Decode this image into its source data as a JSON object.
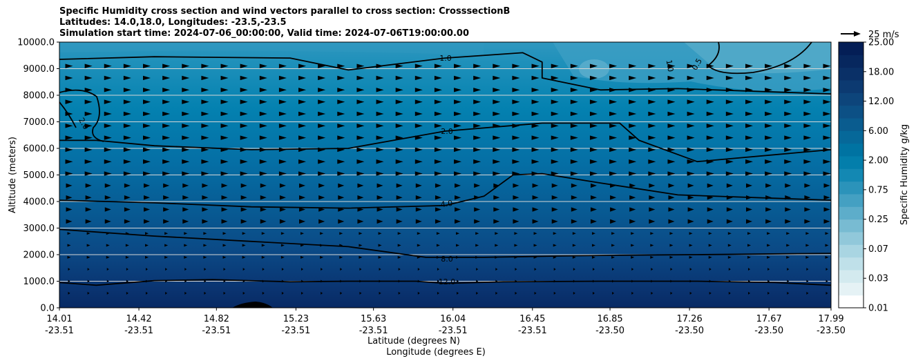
{
  "chart_data": {
    "type": "contour",
    "title_lines": [
      "Specific Humidity cross section and wind vectors parallel to cross section: CrosssectionB",
      "Latitudes: 14.0,18.0, Longitudes: -23.5,-23.5",
      "Simulation start time: 2024-07-06_00:00:00, Valid time: 2024-07-06T19:00:00.00"
    ],
    "xlabel_lat": "Latitude (degrees N)",
    "xlabel_lon": "Longitude (degrees E)",
    "ylabel": "Altitude (meters)",
    "ylim": [
      0,
      10000
    ],
    "yticks": [
      "0.0",
      "1000.0",
      "2000.0",
      "3000.0",
      "4000.0",
      "5000.0",
      "6000.0",
      "7000.0",
      "8000.0",
      "9000.0",
      "10000.0"
    ],
    "xlim": [
      14.01,
      17.99
    ],
    "xticks": [
      {
        "lat": "14.01",
        "lon": "-23.51"
      },
      {
        "lat": "14.42",
        "lon": "-23.51"
      },
      {
        "lat": "14.82",
        "lon": "-23.51"
      },
      {
        "lat": "15.23",
        "lon": "-23.51"
      },
      {
        "lat": "15.63",
        "lon": "-23.51"
      },
      {
        "lat": "16.04",
        "lon": "-23.51"
      },
      {
        "lat": "16.45",
        "lon": "-23.51"
      },
      {
        "lat": "16.85",
        "lon": "-23.50"
      },
      {
        "lat": "17.26",
        "lon": "-23.50"
      },
      {
        "lat": "17.67",
        "lon": "-23.50"
      },
      {
        "lat": "17.99",
        "lon": "-23.50"
      }
    ],
    "colorbar": {
      "label": "Specific Humidity g/kg",
      "levels": [
        0.01,
        0.02,
        0.03,
        0.05,
        0.07,
        0.1,
        0.25,
        0.4,
        0.5,
        0.75,
        1.0,
        1.5,
        2.0,
        3.0,
        4.0,
        6.0,
        8.0,
        12.0,
        16.0,
        18.0,
        20.0,
        25.0
      ],
      "tick_labels": [
        "0.01",
        "0.03",
        "0.07",
        "0.25",
        "0.75",
        "2.00",
        "6.00",
        "12.00",
        "18.00",
        "25.00"
      ]
    },
    "quiver_key": "25 m/s",
    "contour_labels": [
      "1.0",
      "2.0",
      "4.0",
      "8.0",
      "12.0",
      "2.0",
      "1.0",
      "0.5"
    ],
    "contours": [
      {
        "level": 12.0,
        "label": "12.0",
        "points": [
          [
            14.01,
            950
          ],
          [
            14.2,
            850
          ],
          [
            14.5,
            1020
          ],
          [
            14.8,
            1060
          ],
          [
            15.2,
            980
          ],
          [
            15.5,
            1000
          ],
          [
            15.85,
            1000
          ],
          [
            16.0,
            920
          ],
          [
            16.3,
            980
          ],
          [
            16.8,
            1000
          ],
          [
            17.3,
            1000
          ],
          [
            17.7,
            950
          ],
          [
            17.99,
            850
          ]
        ]
      },
      {
        "level": 8.0,
        "label": "8.0",
        "points": [
          [
            14.01,
            2950
          ],
          [
            14.5,
            2700
          ],
          [
            15.0,
            2500
          ],
          [
            15.5,
            2300
          ],
          [
            15.9,
            1900
          ],
          [
            16.2,
            1900
          ],
          [
            16.6,
            1950
          ],
          [
            16.9,
            1980
          ],
          [
            17.3,
            2000
          ],
          [
            17.99,
            2050
          ]
        ]
      },
      {
        "level": 4.0,
        "label": "4.0",
        "points": [
          [
            14.01,
            4050
          ],
          [
            14.5,
            3950
          ],
          [
            15.0,
            3800
          ],
          [
            15.5,
            3750
          ],
          [
            16.0,
            3850
          ],
          [
            16.2,
            4200
          ],
          [
            16.35,
            5000
          ],
          [
            16.5,
            5050
          ],
          [
            16.8,
            4700
          ],
          [
            17.2,
            4250
          ],
          [
            17.99,
            4050
          ]
        ]
      },
      {
        "level": 2.0,
        "label": "2.0",
        "points": [
          [
            14.01,
            6300
          ],
          [
            14.2,
            6300
          ],
          [
            14.5,
            6100
          ],
          [
            15.0,
            5950
          ],
          [
            15.5,
            6000
          ],
          [
            16.0,
            6650
          ],
          [
            16.5,
            6950
          ],
          [
            16.9,
            6950
          ],
          [
            17.0,
            6300
          ],
          [
            17.3,
            5500
          ],
          [
            17.99,
            5950
          ]
        ]
      },
      {
        "level": 1.0,
        "label": "1.0",
        "points": [
          [
            14.01,
            9350
          ],
          [
            14.5,
            9450
          ],
          [
            15.2,
            9400
          ],
          [
            15.5,
            8950
          ],
          [
            16.0,
            9400
          ],
          [
            16.4,
            9600
          ],
          [
            16.5,
            9250
          ],
          [
            16.5,
            8650
          ],
          [
            16.8,
            8200
          ],
          [
            17.2,
            8250
          ],
          [
            17.99,
            8050
          ]
        ]
      }
    ]
  }
}
